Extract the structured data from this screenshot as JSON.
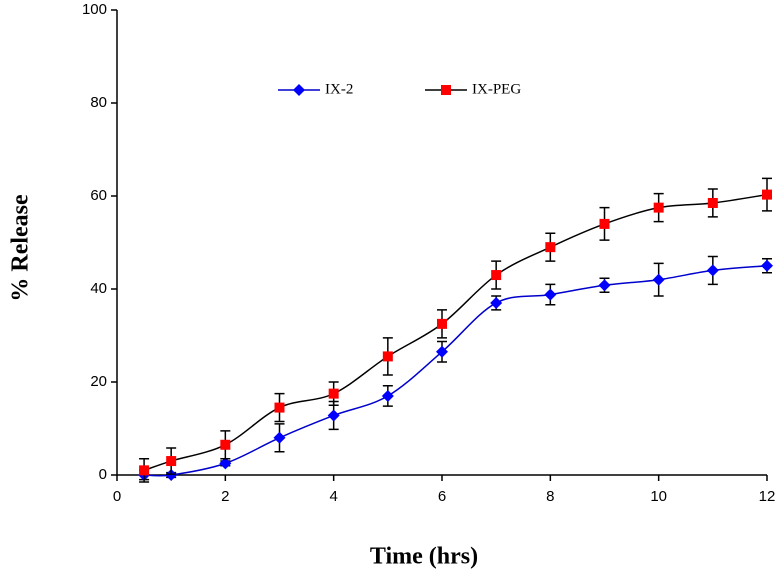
{
  "chart_data": {
    "type": "line",
    "x_label": "Time (hrs)",
    "y_label": "% Release",
    "xlim": [
      0,
      12
    ],
    "xticks": [
      0,
      2,
      4,
      6,
      8,
      10,
      12
    ],
    "ylim": [
      0,
      100
    ],
    "yticks": [
      0,
      20,
      40,
      60,
      80,
      100
    ],
    "legend": "top-center",
    "smooth": true,
    "series": [
      {
        "name": "IX-2",
        "color": "#0000ff",
        "line_color": "#0000cc",
        "marker": "diamond",
        "x": [
          0.5,
          1,
          2,
          3,
          4,
          5,
          6,
          7,
          8,
          9,
          10,
          11,
          12
        ],
        "values": [
          0,
          0,
          2.5,
          8,
          12.8,
          17,
          26.5,
          37,
          38.8,
          40.8,
          42,
          44,
          45
        ],
        "errors": [
          1,
          0.5,
          0.5,
          3,
          3,
          2.2,
          2.2,
          1.5,
          2.2,
          1.5,
          3.5,
          3,
          1.5
        ]
      },
      {
        "name": "IX-PEG",
        "color": "#ff0000",
        "line_color": "#000000",
        "marker": "square",
        "x": [
          0.5,
          1,
          2,
          3,
          4,
          5,
          6,
          7,
          8,
          9,
          10,
          11,
          12
        ],
        "values": [
          1,
          3,
          6.5,
          14.5,
          17.5,
          25.5,
          32.5,
          43,
          49,
          54,
          57.5,
          58.5,
          60.3
        ],
        "errors": [
          2.5,
          2.8,
          3,
          3,
          2.5,
          4,
          3,
          3,
          3,
          3.5,
          3,
          3,
          3.5
        ]
      }
    ]
  }
}
